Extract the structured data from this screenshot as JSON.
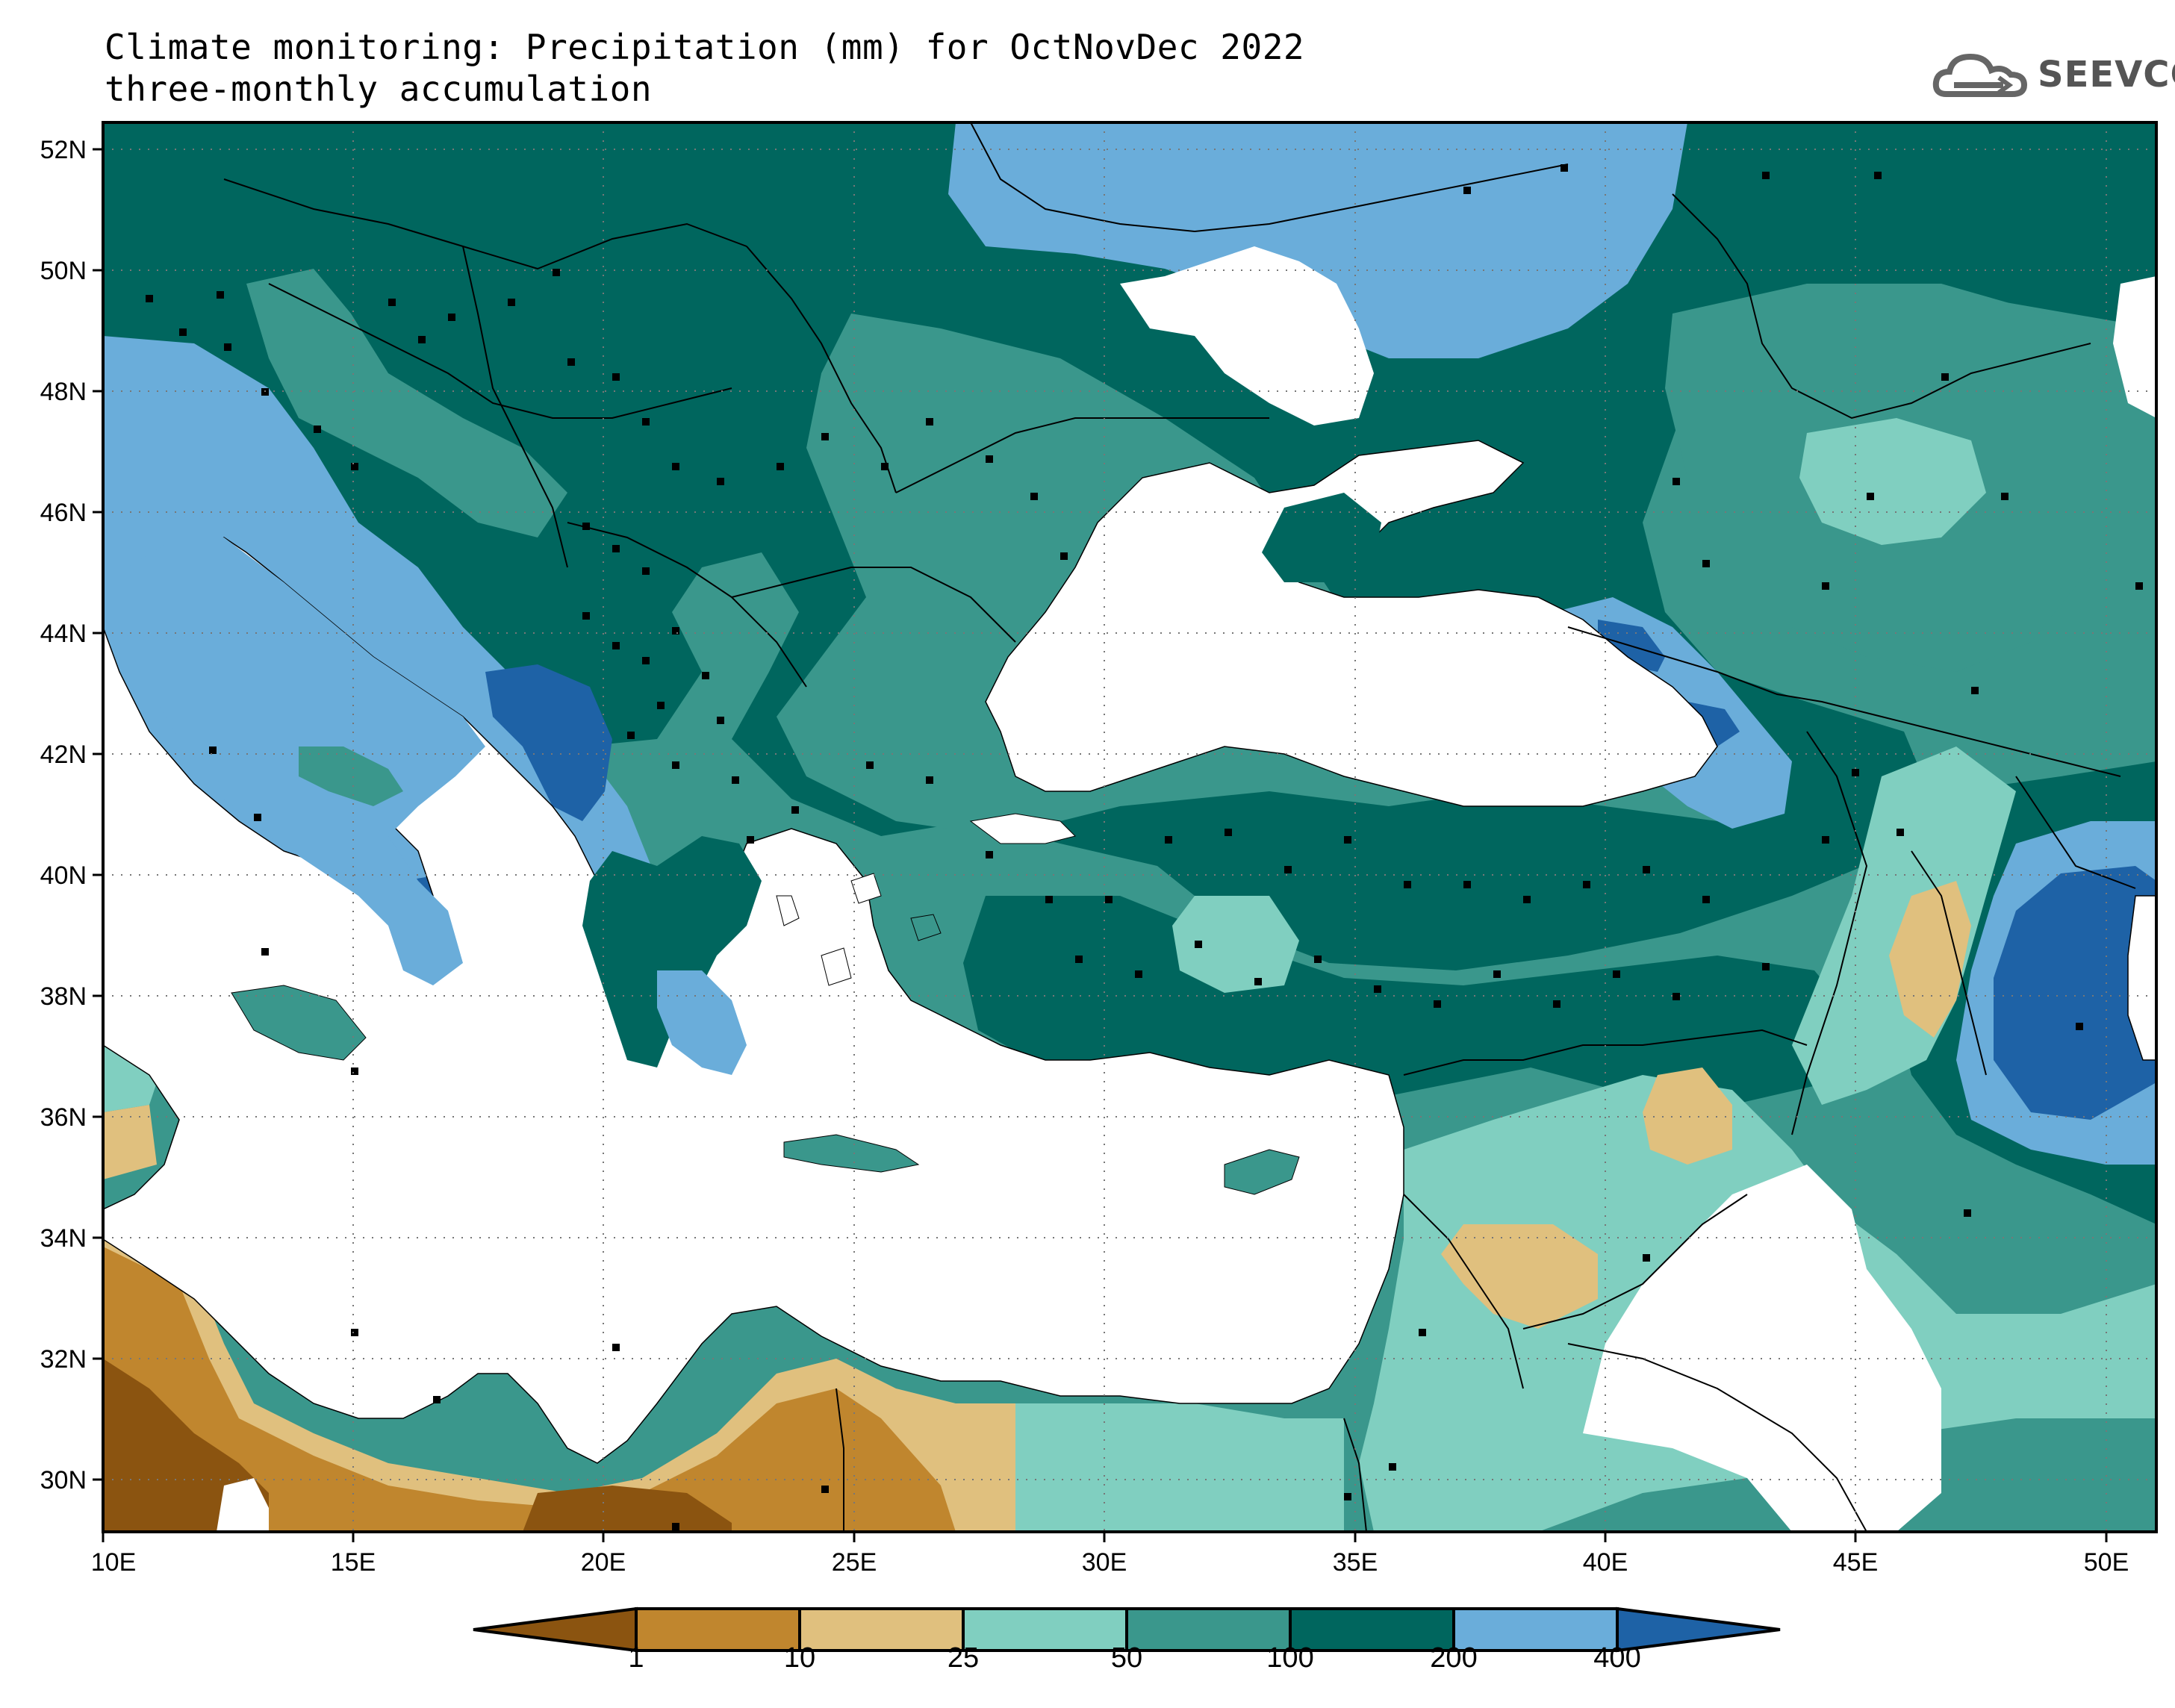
{
  "header": {
    "title": "Climate monitoring: Precipitation (mm) for OctNovDec 2022",
    "subtitle": "three-monthly accumulation"
  },
  "logo": {
    "text": "SEEVCCC",
    "icon": "cloud-icon"
  },
  "map": {
    "lon_range": [
      10,
      51
    ],
    "lat_range": [
      29,
      52.5
    ],
    "lat_ticks": [
      "52N",
      "50N",
      "48N",
      "46N",
      "44N",
      "42N",
      "40N",
      "38N",
      "36N",
      "34N",
      "32N",
      "30N"
    ],
    "lon_ticks": [
      "10E",
      "15E",
      "20E",
      "25E",
      "30E",
      "35E",
      "40E",
      "45E",
      "50E"
    ],
    "grid": true,
    "station_markers": true
  },
  "colorbar": {
    "labels": [
      "1",
      "10",
      "25",
      "50",
      "100",
      "200",
      "400"
    ],
    "colors": [
      "#8b5410",
      "#c0862e",
      "#e0c07e",
      "#80cfc0",
      "#3a978c",
      "#00665e",
      "#6aadda",
      "#1e62a6"
    ]
  }
}
